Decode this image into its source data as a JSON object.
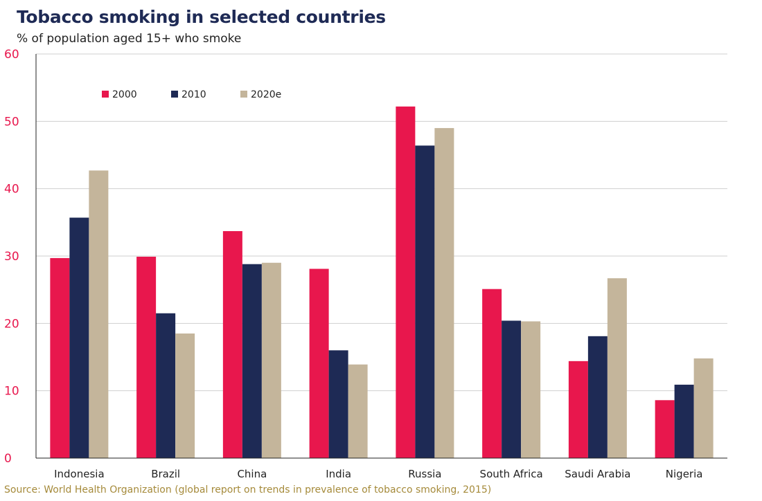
{
  "chart_data": {
    "type": "bar",
    "title": "Tobacco smoking in selected countries",
    "subtitle": "% of population aged 15+ who smoke",
    "source": "Source: World Health Organization (global report on trends in prevalence of tobacco smoking, 2015)",
    "categories": [
      "Indonesia",
      "Brazil",
      "China",
      "India",
      "Russia",
      "South Africa",
      "Saudi Arabia",
      "Nigeria"
    ],
    "series": [
      {
        "name": "2000",
        "color": "#e8174d",
        "values": [
          29.7,
          29.9,
          33.7,
          28.1,
          52.2,
          25.1,
          14.4,
          8.6
        ]
      },
      {
        "name": "2010",
        "color": "#1e2a55",
        "values": [
          35.7,
          21.5,
          28.8,
          16.0,
          46.4,
          20.4,
          18.1,
          10.9
        ]
      },
      {
        "name": "2020e",
        "color": "#c4b59b",
        "values": [
          42.7,
          18.5,
          29.0,
          13.9,
          49.0,
          20.3,
          26.7,
          14.8
        ]
      }
    ],
    "yticks": [
      "0",
      "10",
      "20",
      "30",
      "40",
      "50",
      "60"
    ],
    "ylim": [
      0,
      60
    ],
    "grid": true,
    "legend_position": "top-left"
  }
}
